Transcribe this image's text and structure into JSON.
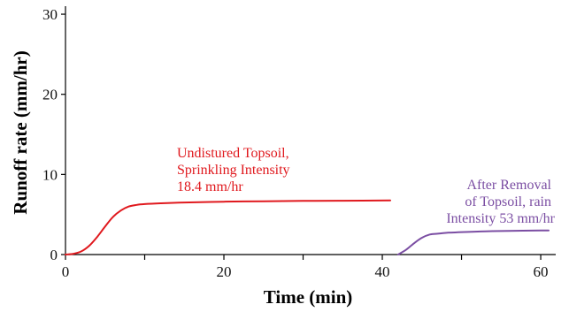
{
  "chart_data": {
    "type": "line",
    "title": "",
    "xlabel": "Time (min)",
    "ylabel": "Runoff rate (mm/hr)",
    "xlim": [
      0,
      61
    ],
    "ylim": [
      0,
      31
    ],
    "x_ticks": [
      0,
      20,
      40,
      60
    ],
    "x_minor_ticks": [
      10,
      30,
      50
    ],
    "y_ticks": [
      0,
      10,
      20,
      30
    ],
    "grid": false,
    "legend": "none",
    "series": [
      {
        "color": "#e0191e",
        "x": [
          0,
          1,
          2,
          3,
          4,
          5,
          6,
          7,
          8,
          9,
          10,
          12,
          15,
          20,
          25,
          30,
          35,
          41
        ],
        "y": [
          0,
          0.1,
          0.4,
          1.1,
          2.2,
          3.5,
          4.7,
          5.5,
          6.0,
          6.2,
          6.3,
          6.4,
          6.5,
          6.6,
          6.65,
          6.7,
          6.72,
          6.75
        ]
      },
      {
        "color": "#7b4ea3",
        "x": [
          42,
          43,
          44,
          45,
          46,
          47,
          48,
          50,
          53,
          56,
          60,
          61
        ],
        "y": [
          0,
          0.6,
          1.4,
          2.1,
          2.5,
          2.6,
          2.7,
          2.8,
          2.9,
          2.95,
          3.0,
          3.0
        ]
      }
    ],
    "annotations": [
      {
        "color": "#e0191e",
        "lines": [
          "Undistured Topsoil,",
          "Sprinkling Intensity",
          "18.4 mm/hr"
        ]
      },
      {
        "color": "#7b4ea3",
        "lines": [
          "After Removal",
          "of Topsoil, rain",
          "Intensity 53 mm/hr"
        ]
      }
    ]
  }
}
